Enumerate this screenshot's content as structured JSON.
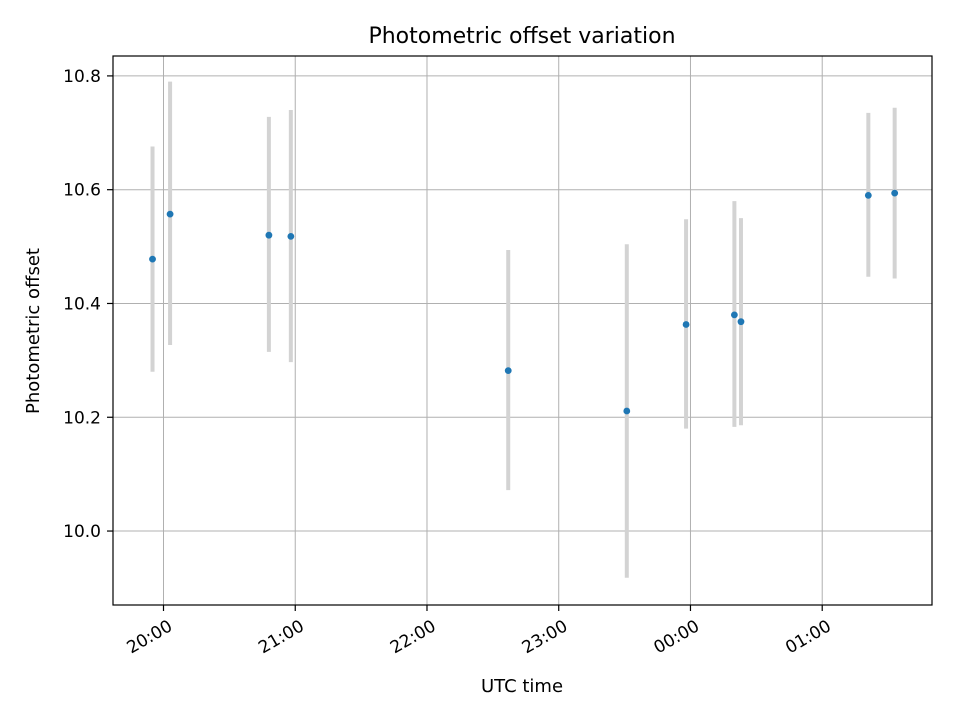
{
  "chart_data": {
    "type": "scatter",
    "title": "Photometric offset variation",
    "xlabel": "UTC time",
    "ylabel": "Photometric offset",
    "x_ticks": [
      "20:00",
      "21:00",
      "22:00",
      "23:00",
      "00:00",
      "01:00"
    ],
    "y_ticks": [
      "10.0",
      "10.2",
      "10.4",
      "10.6",
      "10.8"
    ],
    "xlim": [
      "19:37",
      "01:50"
    ],
    "ylim": [
      9.87,
      10.835
    ],
    "grid": true,
    "point_color": "#1f77b4",
    "errorbar_color": "#d3d3d3",
    "series": [
      {
        "x": [
          "19:55",
          "20:03",
          "20:48",
          "20:58",
          "22:37",
          "23:31",
          "23:58",
          "00:20",
          "00:23",
          "01:21",
          "01:33"
        ],
        "y": [
          10.478,
          10.557,
          10.52,
          10.518,
          10.282,
          10.211,
          10.363,
          10.38,
          10.368,
          10.59,
          10.594
        ],
        "yerr_low": [
          10.28,
          10.327,
          10.315,
          10.297,
          10.072,
          9.918,
          10.18,
          10.183,
          10.186,
          10.447,
          10.444
        ],
        "yerr_high": [
          10.676,
          10.79,
          10.728,
          10.74,
          10.494,
          10.504,
          10.548,
          10.58,
          10.55,
          10.735,
          10.744
        ]
      }
    ]
  }
}
